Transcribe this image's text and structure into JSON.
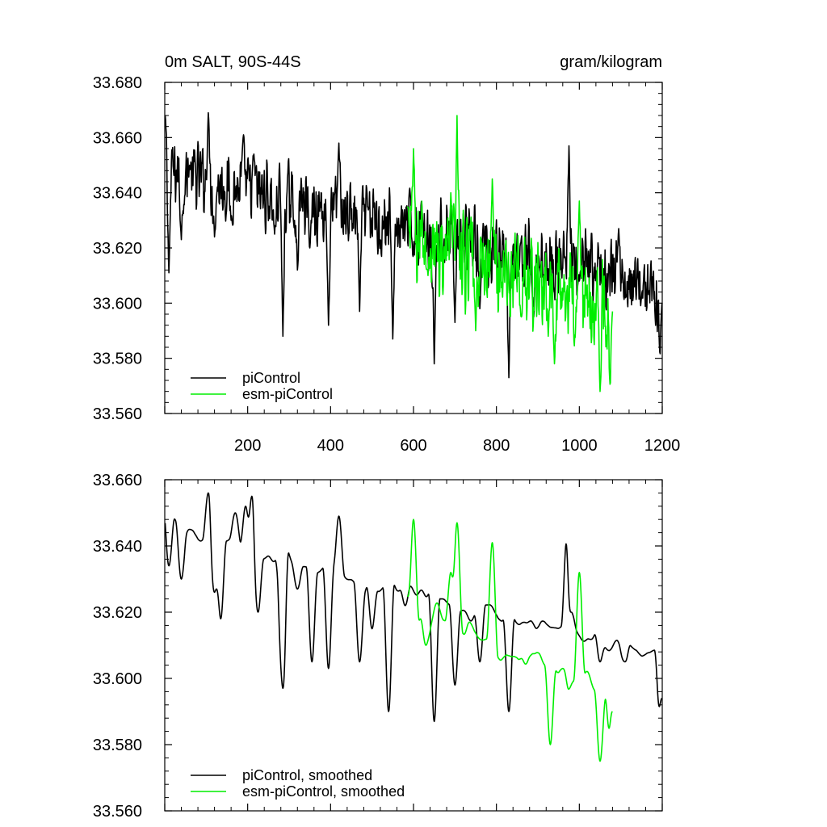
{
  "chart_data": [
    {
      "type": "line",
      "title": "0m SALT, 90S-44S",
      "units": "gram/kilogram",
      "xlabel": "",
      "ylabel": "",
      "xlim": [
        0,
        1200
      ],
      "ylim": [
        33.56,
        33.68
      ],
      "x_ticks": [
        200,
        400,
        600,
        800,
        1000,
        1200
      ],
      "y_ticks": [
        "33.560",
        "33.580",
        "33.600",
        "33.620",
        "33.640",
        "33.660",
        "33.680"
      ],
      "legend_position": "bottom-left",
      "grid": false,
      "series": [
        {
          "name": "piControl",
          "color": "#000000",
          "x_start": 1,
          "x_end": 1200,
          "trend_start": 33.648,
          "trend_end": 33.605,
          "amplitude": 0.012,
          "anchors": [
            [
              1,
              33.668
            ],
            [
              10,
              33.611
            ],
            [
              40,
              33.623
            ],
            [
              60,
              33.65
            ],
            [
              105,
              33.669
            ],
            [
              120,
              33.624
            ],
            [
              160,
              33.63
            ],
            [
              190,
              33.661
            ],
            [
              215,
              33.654
            ],
            [
              265,
              33.625
            ],
            [
              285,
              33.588
            ],
            [
              320,
              33.612
            ],
            [
              350,
              33.62
            ],
            [
              395,
              33.592
            ],
            [
              420,
              33.658
            ],
            [
              470,
              33.597
            ],
            [
              550,
              33.587
            ],
            [
              620,
              33.636
            ],
            [
              650,
              33.578
            ],
            [
              700,
              33.593
            ],
            [
              760,
              33.598
            ],
            [
              830,
              33.573
            ],
            [
              890,
              33.595
            ],
            [
              975,
              33.657
            ],
            [
              1000,
              33.608
            ],
            [
              1095,
              33.627
            ],
            [
              1150,
              33.602
            ],
            [
              1195,
              33.578
            ],
            [
              1200,
              33.6
            ]
          ]
        },
        {
          "name": "esm-piControl",
          "color": "#00ee00",
          "x_start": 585,
          "x_end": 1080,
          "trend_start": 33.622,
          "trend_end": 33.598,
          "amplitude": 0.016,
          "anchors": [
            [
              585,
              33.635
            ],
            [
              600,
              33.656
            ],
            [
              635,
              33.61
            ],
            [
              690,
              33.64
            ],
            [
              705,
              33.668
            ],
            [
              750,
              33.59
            ],
            [
              790,
              33.645
            ],
            [
              860,
              33.595
            ],
            [
              925,
              33.588
            ],
            [
              940,
              33.578
            ],
            [
              1000,
              33.637
            ],
            [
              1050,
              33.568
            ],
            [
              1075,
              33.566
            ],
            [
              1080,
              33.597
            ]
          ]
        }
      ]
    },
    {
      "type": "line",
      "title": "",
      "xlabel": "",
      "ylabel": "",
      "xlim": [
        0,
        1200
      ],
      "ylim": [
        33.56,
        33.66
      ],
      "y_ticks": [
        "33.560",
        "33.580",
        "33.600",
        "33.620",
        "33.640",
        "33.660"
      ],
      "legend_position": "bottom-left",
      "grid": false,
      "series": [
        {
          "name": "piControl, smoothed",
          "color": "#000000",
          "x_start": 1,
          "x_end": 1200,
          "trend_start": 33.645,
          "trend_end": 33.607,
          "amplitude": 0.006,
          "anchors": [
            [
              1,
              33.652
            ],
            [
              10,
              33.634
            ],
            [
              40,
              33.63
            ],
            [
              60,
              33.645
            ],
            [
              105,
              33.656
            ],
            [
              120,
              33.626
            ],
            [
              135,
              33.618
            ],
            [
              170,
              33.65
            ],
            [
              195,
              33.652
            ],
            [
              210,
              33.655
            ],
            [
              225,
              33.62
            ],
            [
              280,
              33.62
            ],
            [
              285,
              33.597
            ],
            [
              320,
              33.627
            ],
            [
              355,
              33.605
            ],
            [
              395,
              33.603
            ],
            [
              420,
              33.649
            ],
            [
              470,
              33.605
            ],
            [
              500,
              33.615
            ],
            [
              540,
              33.59
            ],
            [
              580,
              33.622
            ],
            [
              650,
              33.587
            ],
            [
              700,
              33.598
            ],
            [
              760,
              33.605
            ],
            [
              830,
              33.59
            ],
            [
              970,
              33.643
            ],
            [
              980,
              33.62
            ],
            [
              1050,
              33.605
            ],
            [
              1110,
              33.605
            ],
            [
              1195,
              33.588
            ],
            [
              1200,
              33.594
            ]
          ]
        },
        {
          "name": "esm-piControl, smoothed",
          "color": "#00ee00",
          "x_start": 585,
          "x_end": 1080,
          "trend_start": 33.62,
          "trend_end": 33.595,
          "amplitude": 0.008,
          "anchors": [
            [
              585,
              33.625
            ],
            [
              600,
              33.648
            ],
            [
              630,
              33.61
            ],
            [
              690,
              33.632
            ],
            [
              705,
              33.647
            ],
            [
              735,
              33.617
            ],
            [
              790,
              33.641
            ],
            [
              860,
              33.606
            ],
            [
              930,
              33.58
            ],
            [
              960,
              33.603
            ],
            [
              1000,
              33.632
            ],
            [
              1050,
              33.575
            ],
            [
              1075,
              33.58
            ],
            [
              1080,
              33.59
            ]
          ]
        }
      ]
    }
  ]
}
